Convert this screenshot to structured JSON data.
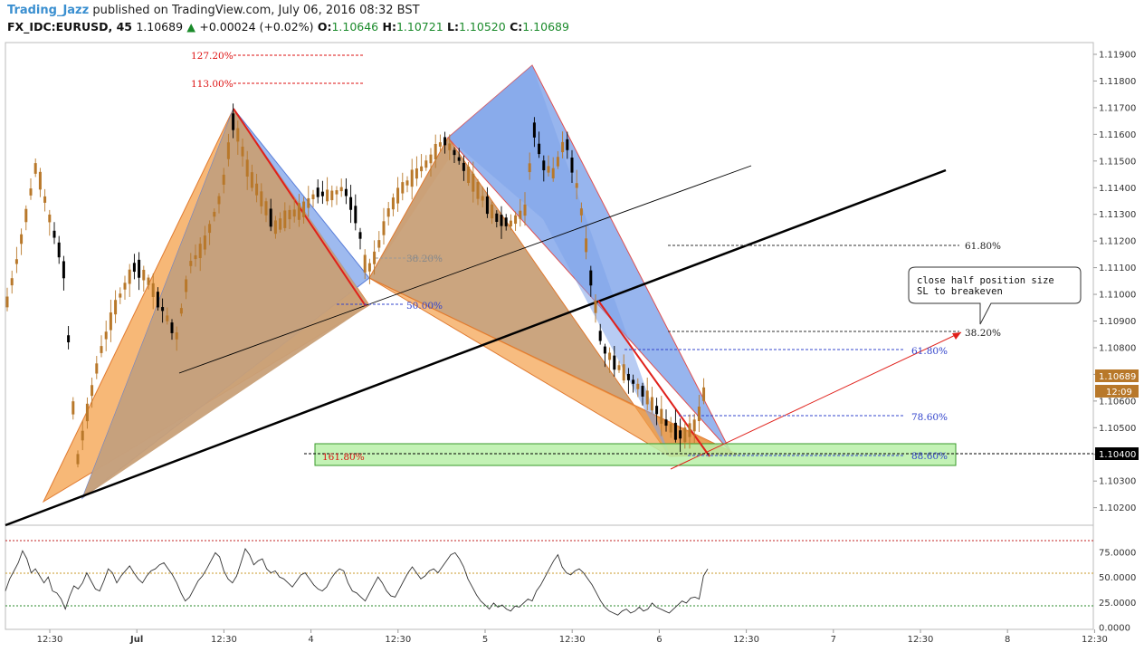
{
  "header": {
    "author": "Trading_Jazz",
    "published": "published on TradingView.com, July 06, 2016 08:32 BST",
    "symbol": "FX_IDC:EURUSD, 45",
    "last": "1.10689",
    "change_arrow": "▲",
    "change": "+0.00024 (+0.02%)",
    "o_label": "O:",
    "o_value": "1.10646",
    "h_label": "H:",
    "h_value": "1.10721",
    "l_label": "L:",
    "l_value": "1.10520",
    "c_label": "C:",
    "c_value": "1.10689"
  },
  "colors": {
    "up": "#b8782a",
    "down": "#000000",
    "orange_fill": "#f4a04a",
    "blue_fill": "#7da3ea",
    "red": "#e0201a",
    "green_box": "#b9f0a8",
    "fib_red": "#d11",
    "fib_blue": "#3344cc",
    "fib_gray": "#888888"
  },
  "chart_data": {
    "type": "candlestick",
    "instrument": "FX_IDC:EURUSD",
    "timeframe": "45",
    "ylim": [
      1.1013,
      1.1194
    ],
    "price_ticks": [
      "1.11900",
      "1.11800",
      "1.11700",
      "1.11600",
      "1.11500",
      "1.11400",
      "1.11300",
      "1.11200",
      "1.11100",
      "1.11000",
      "1.10900",
      "1.10800",
      "1.10700",
      "1.10600",
      "1.10500",
      "1.10400",
      "1.10300",
      "1.10200"
    ],
    "x_ticks": [
      "12:30",
      "Jul",
      "12:30",
      "4",
      "12:30",
      "5",
      "12:30",
      "6",
      "12:30",
      "7",
      "12:30",
      "8",
      "12:30"
    ],
    "last_price_label": "1.10689",
    "countdown_label": "12:09",
    "level_label": "1.10400",
    "fib_labels": {
      "f127": "127.20%",
      "f113": "113.00%",
      "f382a": "38.20%",
      "f500": "50.00%",
      "f1618": "161.80%",
      "f618b": "61.80%",
      "f382b": "38.20%",
      "f618c": "61.80%",
      "f786": "78.60%",
      "f886": "88.60%"
    },
    "callout": [
      "close half position size",
      "SL to breakeven"
    ],
    "oscillator": {
      "ylim": [
        0,
        100
      ],
      "ticks": [
        "75.0000",
        "50.0000",
        "25.0000",
        "0.0000"
      ],
      "levels": [
        80,
        50,
        20
      ],
      "values": [
        40,
        52,
        60,
        68,
        80,
        72,
        58,
        62,
        55,
        48,
        54,
        40,
        38,
        32,
        22,
        35,
        45,
        42,
        48,
        58,
        50,
        42,
        40,
        50,
        62,
        58,
        48,
        55,
        60,
        65,
        58,
        52,
        48,
        55,
        60,
        62,
        66,
        68,
        62,
        56,
        48,
        38,
        30,
        34,
        42,
        50,
        55,
        62,
        70,
        78,
        74,
        60,
        52,
        48,
        55,
        68,
        82,
        76,
        66,
        70,
        72,
        62,
        58,
        60,
        54,
        52,
        48,
        44,
        50,
        56,
        58,
        52,
        46,
        42,
        40,
        44,
        52,
        58,
        62,
        60,
        48,
        40,
        38,
        34,
        30,
        38,
        46,
        54,
        48,
        40,
        35,
        34,
        42,
        50,
        58,
        64,
        58,
        52,
        55,
        60,
        62,
        58,
        64,
        70,
        76,
        78,
        72,
        64,
        52,
        44,
        36,
        30,
        26,
        22,
        28,
        24,
        26,
        22,
        20,
        25,
        24,
        28,
        32,
        30,
        40,
        46,
        54,
        62,
        70,
        76,
        64,
        58,
        56,
        60,
        62,
        58,
        52,
        46,
        38,
        30,
        24,
        20,
        18,
        16,
        20,
        22,
        18,
        20,
        24,
        20,
        22,
        28,
        24,
        22,
        20,
        18,
        22,
        26,
        30,
        28,
        33,
        34,
        32,
        55,
        62
      ]
    }
  }
}
